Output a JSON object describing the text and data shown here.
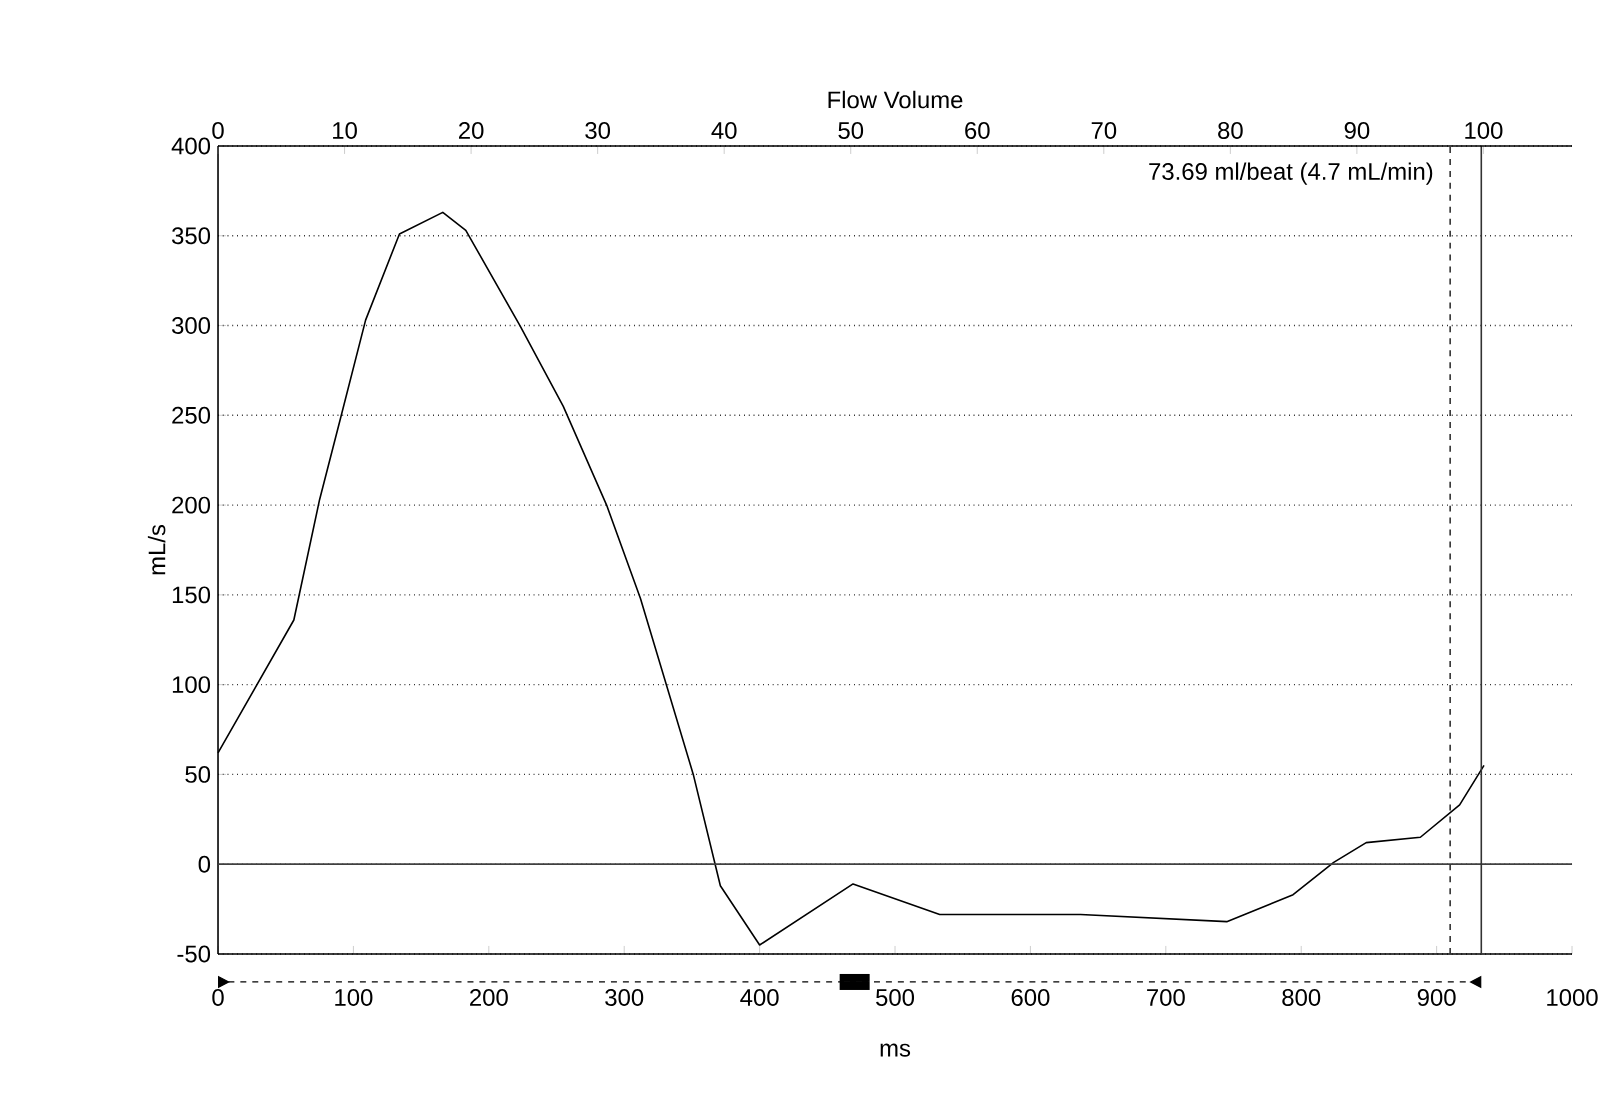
{
  "chart_data": {
    "type": "line",
    "xlabel": "ms",
    "ylabel": "mL/s",
    "x2label": "Flow Volume",
    "annotations": [
      "73.69 ml/beat (4.7 mL/min)"
    ],
    "xlim": [
      0,
      1000
    ],
    "xticks": [
      0,
      100,
      200,
      300,
      400,
      500,
      600,
      700,
      800,
      900,
      1000
    ],
    "x2lim": [
      0,
      107
    ],
    "x2ticks": [
      0,
      10,
      20,
      30,
      40,
      50,
      60,
      70,
      80,
      90,
      100
    ],
    "ylim": [
      -50,
      400
    ],
    "yticks": [
      -50,
      0,
      50,
      100,
      150,
      200,
      250,
      300,
      350,
      400
    ],
    "grid": "y",
    "marker": "none",
    "line_style": "solid",
    "ref_lines": [
      {
        "axis": "y",
        "value": 0,
        "line_style": "solid"
      },
      {
        "axis": "x",
        "value": 910,
        "line_style": "dashed"
      },
      {
        "axis": "x",
        "value": 933,
        "line_style": "solid"
      }
    ],
    "series": [
      {
        "color": "#000000",
        "x": [
          0,
          56,
          75,
          90,
          109,
          134,
          166,
          183,
          223,
          255,
          287,
          312,
          351,
          371,
          400,
          469,
          533,
          607,
          637,
          745,
          794,
          824,
          848,
          888,
          917,
          935
        ],
        "values": [
          62,
          136,
          203,
          247,
          303,
          351,
          363,
          353,
          300,
          255,
          200,
          148,
          50,
          -12,
          -45,
          -11,
          -28,
          -28,
          -28,
          -32,
          -17,
          1,
          12,
          15,
          33,
          55
        ]
      }
    ]
  }
}
